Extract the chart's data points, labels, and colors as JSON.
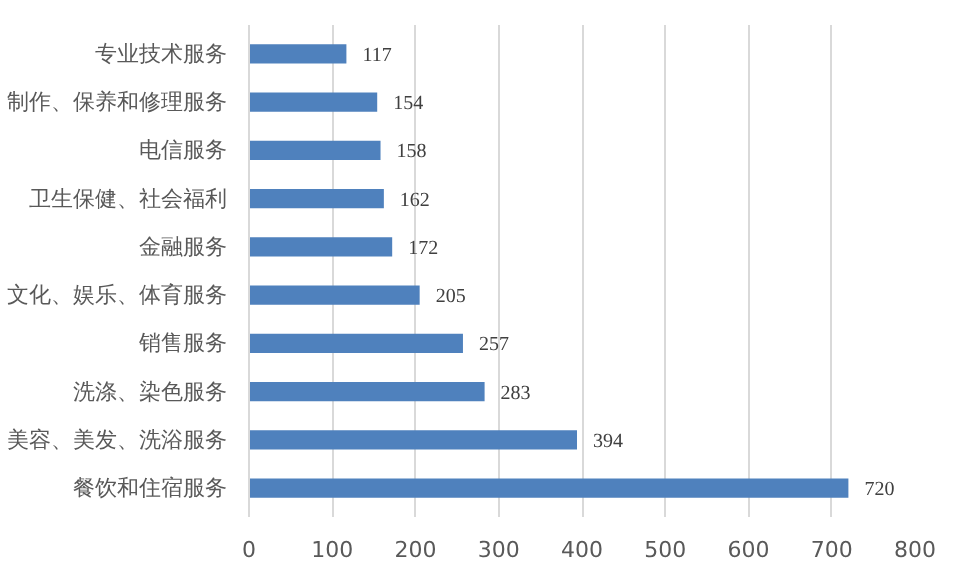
{
  "chart_data": {
    "type": "bar",
    "orientation": "horizontal",
    "categories": [
      "专业技术服务",
      "制作、保养和修理服务",
      "电信服务",
      "卫生保健、社会福利",
      "金融服务",
      "文化、娱乐、体育服务",
      "销售服务",
      "洗涤、染色服务",
      "美容、美发、洗浴服务",
      "餐饮和住宿服务"
    ],
    "values": [
      117,
      154,
      158,
      162,
      172,
      205,
      257,
      283,
      394,
      720
    ],
    "color": "#4f81bd",
    "xlim": [
      0,
      800
    ],
    "xticks": [
      0,
      100,
      200,
      300,
      400,
      500,
      600,
      700,
      800
    ],
    "grid": "x",
    "data_labels": true
  }
}
